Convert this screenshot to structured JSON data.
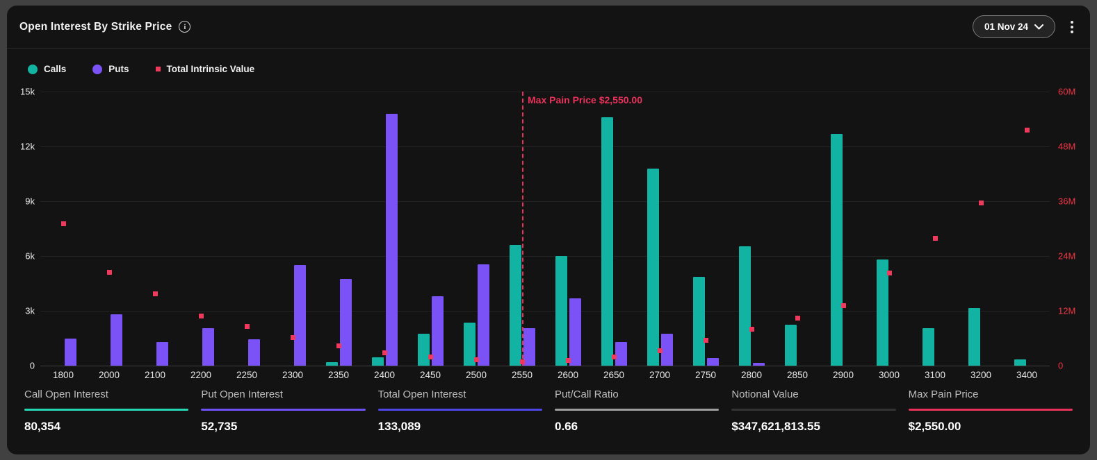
{
  "header": {
    "title": "Open Interest By Strike Price",
    "info_icon": "info-icon",
    "date_selector": "01 Nov 24",
    "menu_icon": "kebab-menu-icon"
  },
  "legend": [
    {
      "label": "Calls",
      "shape": "circle",
      "color": "#12b3a2"
    },
    {
      "label": "Puts",
      "shape": "circle",
      "color": "#7a52f5"
    },
    {
      "label": "Total Intrinsic Value",
      "shape": "square",
      "color": "#f0395c"
    }
  ],
  "chart_data": {
    "type": "bar",
    "title": "Open Interest By Strike Price",
    "categories": [
      1800,
      2000,
      2100,
      2200,
      2250,
      2300,
      2350,
      2400,
      2450,
      2500,
      2550,
      2600,
      2650,
      2700,
      2750,
      2800,
      2850,
      2900,
      3000,
      3100,
      3200,
      3400
    ],
    "series": [
      {
        "name": "Calls",
        "axis": "left",
        "color": "#12b3a2",
        "values": [
          0,
          0,
          0,
          0,
          0,
          0,
          200,
          450,
          1750,
          2350,
          6600,
          6000,
          13600,
          10800,
          4850,
          6550,
          2250,
          12700,
          5800,
          2050,
          3150,
          350
        ]
      },
      {
        "name": "Puts",
        "axis": "left",
        "color": "#7a52f5",
        "values": [
          1500,
          2800,
          1300,
          2050,
          1450,
          5500,
          4750,
          13800,
          3800,
          5550,
          2050,
          3700,
          1300,
          1750,
          400,
          150,
          0,
          0,
          0,
          0,
          0,
          0
        ]
      },
      {
        "name": "Total Intrinsic Value",
        "axis": "right",
        "color": "#f0395c",
        "marker": "square",
        "values": [
          31000000,
          20500000,
          15700000,
          10900000,
          8600000,
          6200000,
          4300000,
          2800000,
          1900000,
          1300000,
          900000,
          1100000,
          1900000,
          3300000,
          5500000,
          7900000,
          10400000,
          13200000,
          20300000,
          27800000,
          35600000,
          51500000
        ]
      }
    ],
    "left_axis": {
      "ticks": [
        "0",
        "3k",
        "6k",
        "9k",
        "12k",
        "15k"
      ],
      "max": 15000,
      "color": "#eaeaea"
    },
    "right_axis": {
      "ticks": [
        "0",
        "12M",
        "24M",
        "36M",
        "48M",
        "60M"
      ],
      "max": 60000000,
      "color": "#f23645"
    },
    "grid": true,
    "legend_position": "top-left",
    "annotation": {
      "label": "Max Pain Price $2,550.00",
      "strike": 2550,
      "color": "#e8315b"
    }
  },
  "stats": [
    {
      "label": "Call Open Interest",
      "value": "80,354",
      "accent": "#26d7b4"
    },
    {
      "label": "Put Open Interest",
      "value": "52,735",
      "accent": "#6e52f5"
    },
    {
      "label": "Total Open Interest",
      "value": "133,089",
      "accent": "#4f46e8"
    },
    {
      "label": "Put/Call Ratio",
      "value": "0.66",
      "accent": "#9e9e9e"
    },
    {
      "label": "Notional Value",
      "value": "$347,621,813.55",
      "accent": "#333333"
    },
    {
      "label": "Max Pain Price",
      "value": "$2,550.00",
      "accent": "#e8315b"
    }
  ]
}
